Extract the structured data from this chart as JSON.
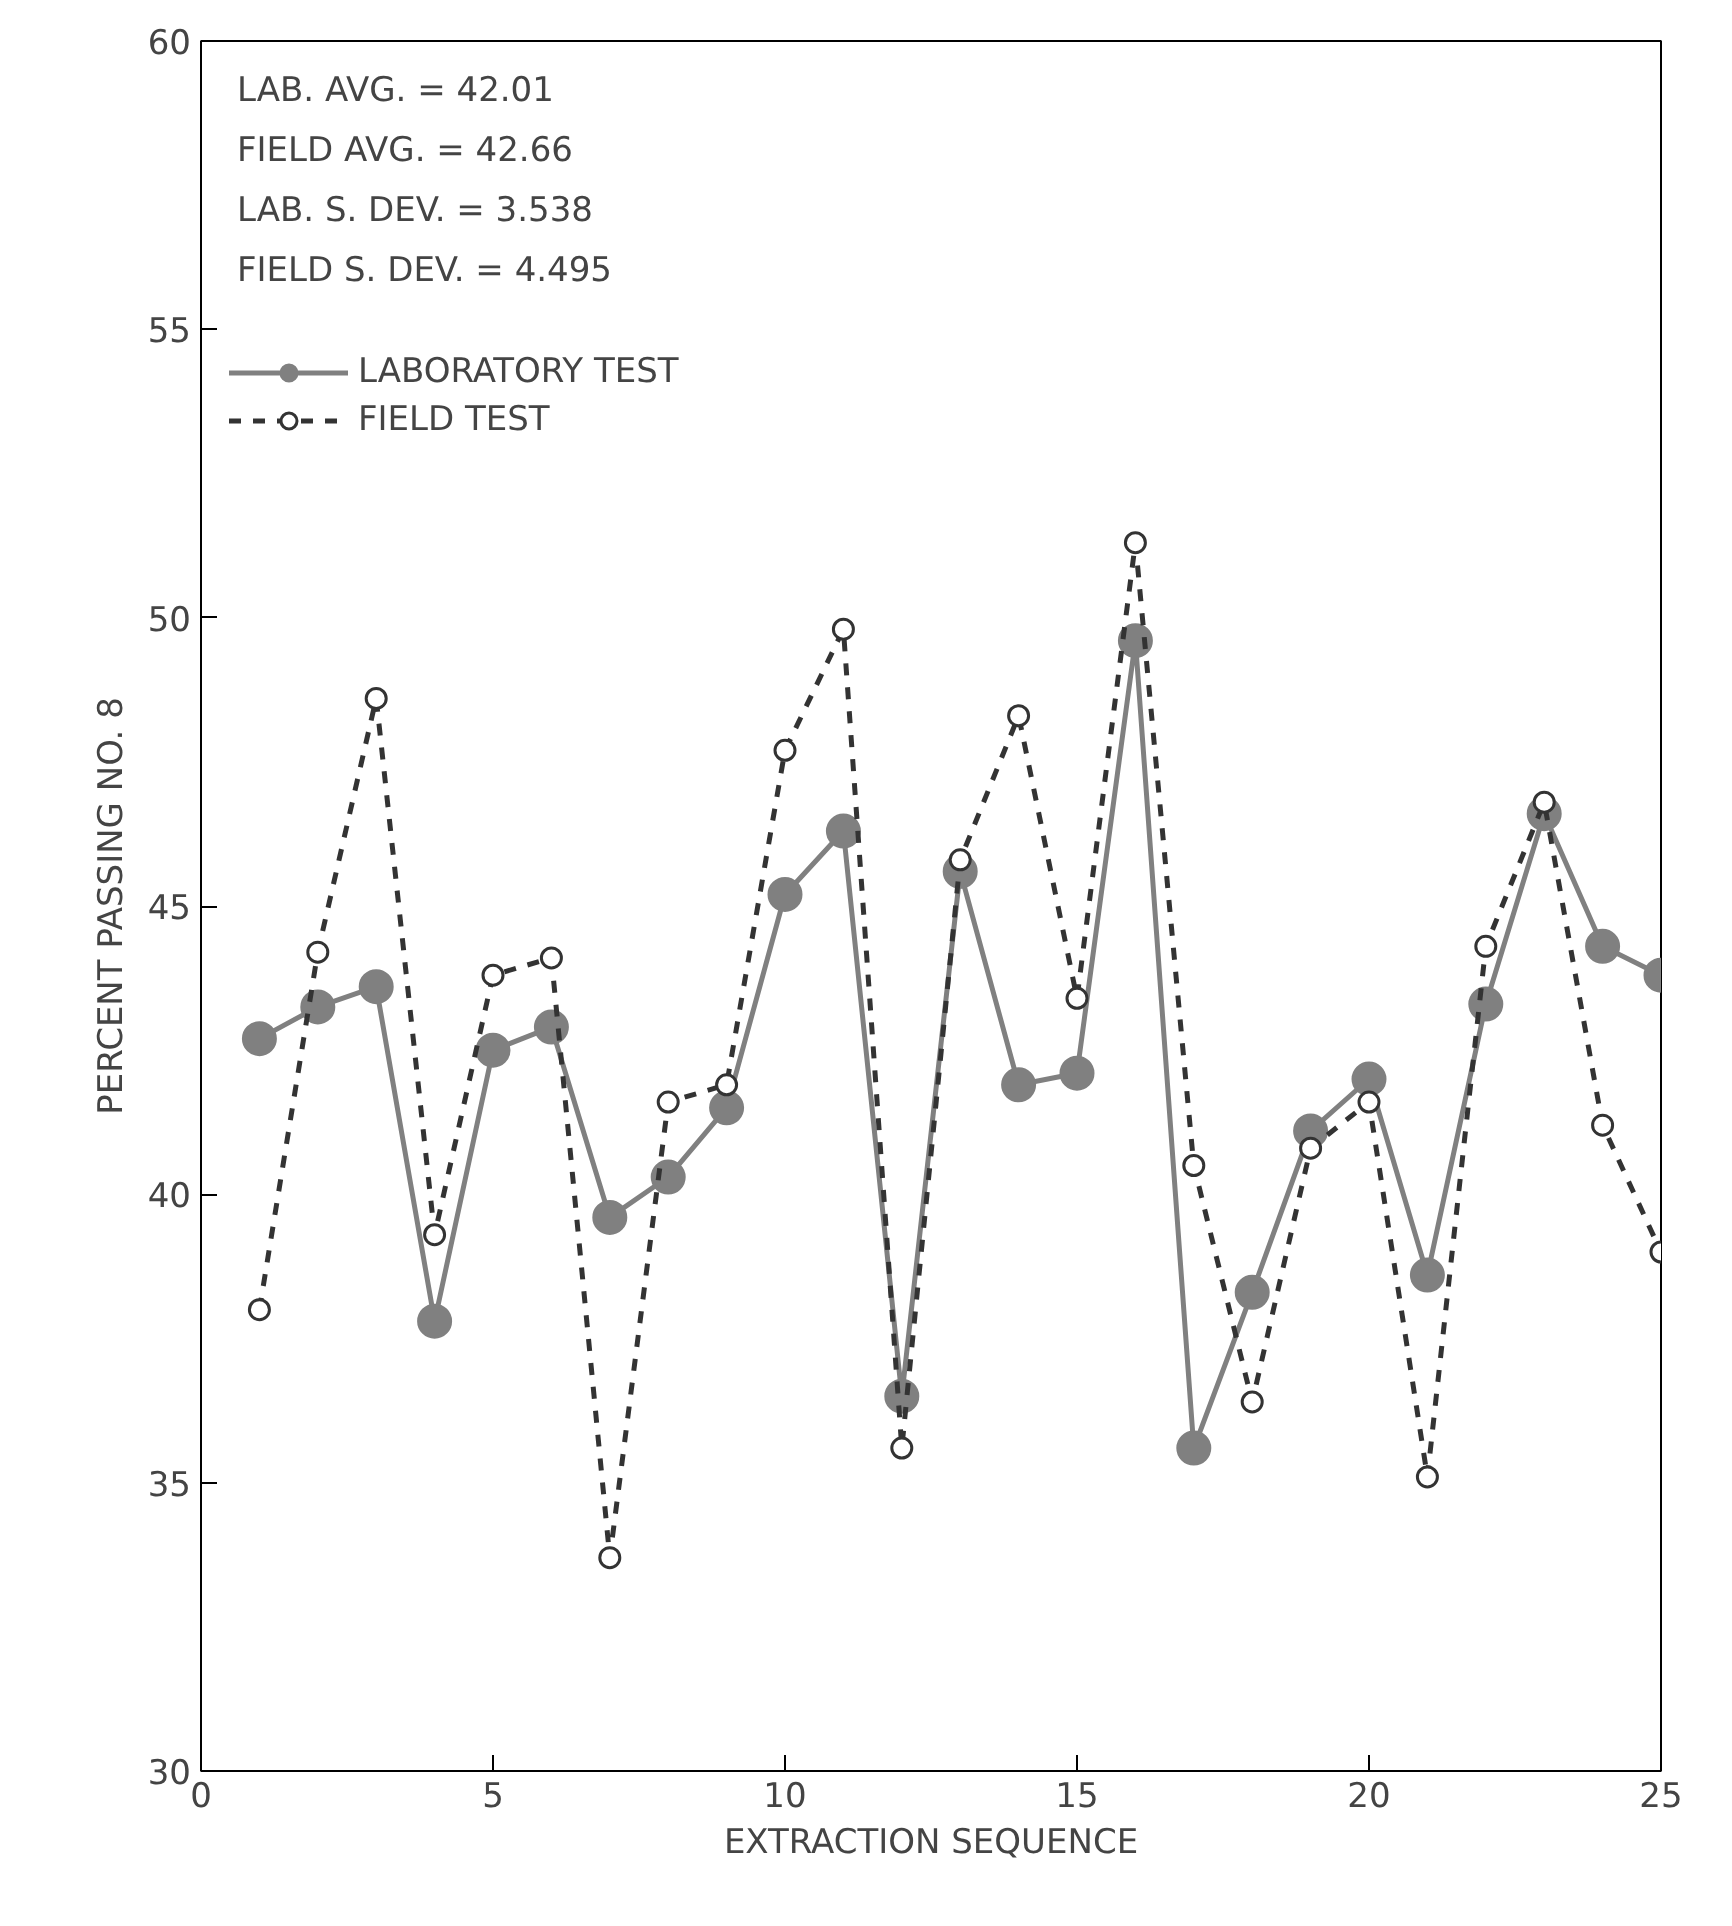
{
  "chart_data": {
    "type": "line",
    "xlabel": "EXTRACTION SEQUENCE",
    "ylabel": "PERCENT PASSING NO. 8",
    "x": [
      1,
      2,
      3,
      4,
      5,
      6,
      7,
      8,
      9,
      10,
      11,
      12,
      13,
      14,
      15,
      16,
      17,
      18,
      19,
      20,
      21,
      22,
      23,
      24,
      25
    ],
    "series": [
      {
        "name": "LABORATORY TEST",
        "color": "#808080",
        "line_style": "solid",
        "marker": "circle",
        "values": [
          42.7,
          43.25,
          43.6,
          37.8,
          42.5,
          42.9,
          39.6,
          40.3,
          41.5,
          45.2,
          46.3,
          36.5,
          45.6,
          41.9,
          42.1,
          49.6,
          35.6,
          38.3,
          41.1,
          42.0,
          38.6,
          43.3,
          46.6,
          44.3,
          43.8
        ]
      },
      {
        "name": "FIELD TEST",
        "color": "#333333",
        "line_style": "dashed",
        "marker": "circle",
        "values": [
          38.0,
          44.2,
          48.6,
          39.3,
          43.8,
          44.1,
          33.7,
          41.6,
          41.9,
          47.7,
          49.8,
          35.6,
          45.8,
          48.3,
          43.4,
          51.3,
          40.5,
          36.4,
          40.8,
          41.6,
          35.1,
          44.3,
          46.8,
          41.2,
          39.0
        ]
      }
    ],
    "xlim": [
      0,
      25
    ],
    "xticks": [
      0,
      5,
      10,
      15,
      20,
      25
    ],
    "ylim": [
      30,
      60
    ],
    "yticks": [
      30,
      35,
      40,
      45,
      50,
      55,
      60
    ],
    "grid": false,
    "legend": "top left",
    "annotations": [
      "LAB. AVG. = 42.01",
      "FIELD AVG. = 42.66",
      "LAB. S. DEV. = 3.538",
      "FIELD S. DEV. = 4.495"
    ]
  }
}
